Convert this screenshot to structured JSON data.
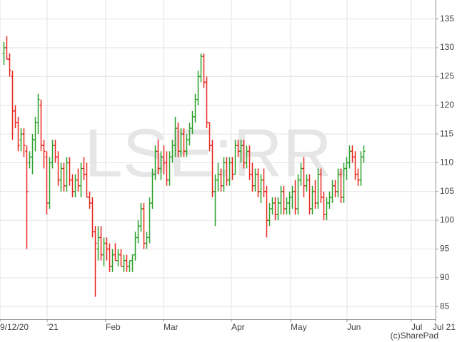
{
  "chart_data": {
    "type": "ohlc",
    "watermark": "LSE:RR.",
    "credit": "(c)SharePad",
    "up_color": "#2ca02c",
    "down_color": "#e8251c",
    "grid": true,
    "xlim": [
      -1.25,
      151.25
    ],
    "xticks": [
      {
        "value": -1.25,
        "label": "9/12/20"
      },
      {
        "value": 15.25,
        "label": "'21"
      },
      {
        "value": 35.75,
        "label": "Feb"
      },
      {
        "value": 56,
        "label": "Mar"
      },
      {
        "value": 79.75,
        "label": "Apr"
      },
      {
        "value": 100.5,
        "label": "May"
      },
      {
        "value": 120.25,
        "label": "Jun"
      },
      {
        "value": 142.75,
        "label": "Jul"
      },
      {
        "value": 151.25,
        "label": "Jul 21"
      }
    ],
    "ylim": [
      82.8,
      138.3
    ],
    "yticks": [
      85,
      90,
      95,
      100,
      105,
      110,
      115,
      120,
      125,
      130,
      135
    ],
    "open": [
      129,
      130,
      128,
      125,
      119,
      117,
      114,
      115,
      112,
      110,
      111,
      114,
      117,
      120,
      113,
      111,
      103,
      110,
      113,
      111,
      107,
      109,
      106,
      110,
      107,
      105,
      107,
      106,
      109,
      108,
      104,
      103,
      98,
      95,
      97,
      94,
      96,
      95,
      92,
      94,
      93,
      94,
      92,
      93,
      92,
      93,
      94,
      97,
      99,
      102,
      96,
      97,
      103,
      108,
      112,
      109,
      111,
      110,
      107,
      111,
      113,
      116,
      112,
      115,
      112,
      114,
      116,
      118,
      121,
      125,
      128.5,
      124,
      117,
      113,
      105,
      107,
      108,
      106,
      110,
      107,
      110,
      108,
      113,
      112,
      113,
      110,
      112,
      108,
      106,
      108,
      105,
      107,
      105,
      100,
      102,
      103,
      101,
      103,
      105,
      102,
      103,
      104,
      105,
      102,
      107,
      109,
      106,
      107,
      102,
      105,
      103,
      108,
      104,
      101,
      103,
      104,
      106,
      105,
      108,
      104,
      109,
      110,
      112,
      111,
      108,
      107,
      111
    ],
    "high": [
      131,
      132,
      129,
      126,
      120,
      118,
      116,
      116,
      113,
      112,
      115,
      118,
      122,
      121,
      114,
      112,
      111,
      114,
      114,
      112,
      110,
      110,
      111,
      111,
      108,
      108,
      109,
      110,
      111,
      110,
      105,
      104,
      99,
      99,
      99,
      97,
      97,
      96,
      95,
      96,
      95,
      95,
      94,
      94,
      93,
      94,
      98,
      100,
      103,
      103,
      98,
      104,
      109,
      113,
      114,
      112,
      113,
      112,
      112,
      114,
      118,
      117,
      116,
      116,
      115,
      117,
      119,
      122,
      126,
      129,
      129,
      125,
      117,
      114,
      108,
      110,
      109,
      111,
      111,
      111,
      111,
      114,
      114,
      114,
      114,
      113,
      113,
      110,
      109,
      109,
      108,
      109,
      106,
      103,
      104,
      104,
      104,
      106,
      106,
      104,
      105,
      106,
      107,
      108,
      110,
      111,
      108,
      108,
      106,
      107,
      109,
      109,
      105,
      104,
      105,
      107,
      107,
      109,
      109,
      110,
      111,
      113,
      113,
      112,
      109,
      112,
      113
    ],
    "low": [
      127,
      128,
      125,
      114,
      116,
      112,
      112,
      111,
      95,
      109,
      108,
      112,
      115,
      112,
      109,
      101,
      102,
      109,
      110,
      106,
      105,
      105,
      105,
      106,
      104,
      104,
      105,
      104,
      107,
      104,
      102,
      97,
      86.7,
      93,
      93,
      92,
      93,
      91,
      91,
      93,
      92,
      92,
      91,
      91,
      91,
      91,
      93,
      96,
      98,
      95,
      95,
      96,
      102,
      107,
      108,
      107,
      108,
      106,
      106,
      110,
      111,
      111,
      111,
      111,
      111,
      113,
      115,
      117,
      120,
      124,
      123,
      116,
      112,
      104,
      99,
      105,
      105,
      105,
      106,
      106,
      107,
      108,
      111,
      110,
      109,
      109,
      107,
      105,
      105,
      104,
      103,
      104,
      97,
      99,
      101,
      100,
      100,
      101,
      101,
      101,
      101,
      102,
      101,
      101,
      106,
      104,
      105,
      101,
      101,
      102,
      102,
      103,
      100,
      100,
      102,
      103,
      104,
      104,
      103,
      103,
      107,
      109,
      110,
      107,
      106,
      106,
      110
    ],
    "close": [
      130,
      128,
      126,
      119,
      117,
      113,
      115,
      113,
      105,
      111,
      114,
      117,
      121,
      113,
      112,
      103,
      110,
      113,
      111,
      107,
      109,
      106,
      110,
      107,
      105,
      107,
      106,
      109,
      108,
      104,
      103,
      98,
      96,
      97,
      94,
      96,
      95,
      92,
      94,
      93,
      94,
      92,
      93,
      92,
      93,
      94,
      97,
      99,
      102,
      96,
      97,
      103,
      108,
      112,
      109,
      111,
      110,
      107,
      111,
      113,
      116,
      112,
      115,
      112,
      114,
      116,
      118,
      121,
      125,
      128.5,
      124,
      117,
      113,
      105,
      107,
      108,
      106,
      110,
      107,
      110,
      108,
      113,
      112,
      113,
      110,
      112,
      108,
      106,
      108,
      105,
      107,
      105,
      100,
      102,
      103,
      101,
      103,
      105,
      102,
      103,
      104,
      105,
      102,
      107,
      109,
      106,
      107,
      102,
      105,
      103,
      108,
      104,
      101,
      103,
      104,
      106,
      105,
      108,
      104,
      109,
      110,
      112,
      111,
      108,
      107,
      111,
      112
    ]
  }
}
